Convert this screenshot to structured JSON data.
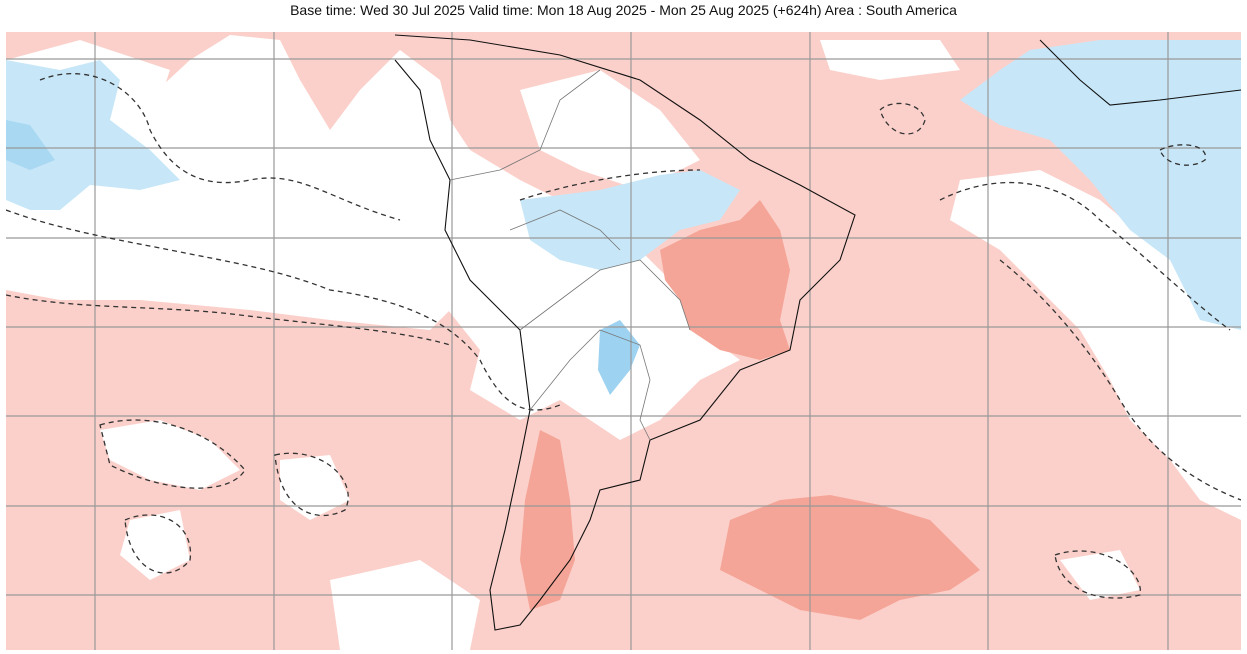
{
  "header": {
    "title": "Base time: Wed 30 Jul 2025 Valid time: Mon 18 Aug 2025 - Mon 25 Aug 2025 (+624h) Area : South America"
  }
}
